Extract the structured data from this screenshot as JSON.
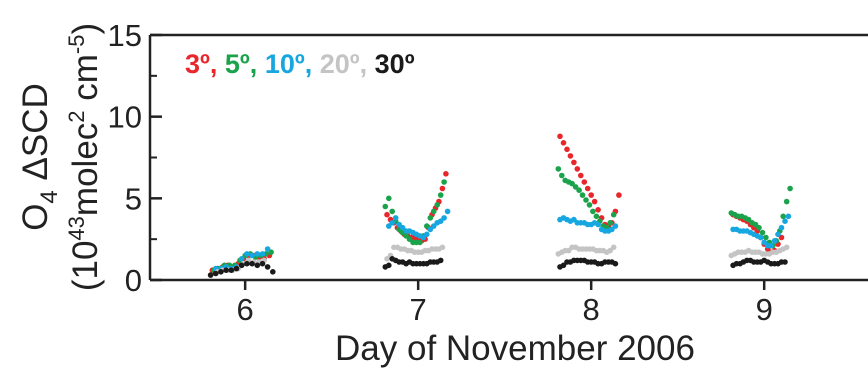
{
  "chart_data": {
    "type": "scatter",
    "xlabel": "Day of November 2006",
    "ylabel_line1": "O",
    "ylabel_line1_sub": "4",
    "ylabel_line1_rest": " ΔSCD",
    "ylabel_line2": "(10",
    "ylabel_line2_sup1": "43",
    "ylabel_line2_mid": "molec",
    "ylabel_line2_sup2": "2",
    "ylabel_line2_cm": " cm",
    "ylabel_line2_sup3": "-5",
    "ylabel_line2_close": ")",
    "xlim": [
      5.45,
      9.6
    ],
    "ylim": [
      0,
      15
    ],
    "xticks": [
      "6",
      "7",
      "8",
      "9"
    ],
    "yticks": [
      "0",
      "5",
      "10",
      "15"
    ],
    "series": [
      {
        "name": "3º",
        "color": "#e8262b",
        "points": [
          [
            5.81,
            0.6
          ],
          [
            5.84,
            0.7
          ],
          [
            5.87,
            0.8
          ],
          [
            5.9,
            0.9
          ],
          [
            5.93,
            0.8
          ],
          [
            5.96,
            1.0
          ],
          [
            5.99,
            1.3
          ],
          [
            6.02,
            1.5
          ],
          [
            6.05,
            1.5
          ],
          [
            6.08,
            1.4
          ],
          [
            6.11,
            1.3
          ],
          [
            6.14,
            1.5
          ],
          [
            6.82,
            4.0
          ],
          [
            6.84,
            3.7
          ],
          [
            6.86,
            3.5
          ],
          [
            6.88,
            3.2
          ],
          [
            6.9,
            3.0
          ],
          [
            6.92,
            2.8
          ],
          [
            6.94,
            2.7
          ],
          [
            6.96,
            2.6
          ],
          [
            6.98,
            2.6
          ],
          [
            7.0,
            2.5
          ],
          [
            7.02,
            2.4
          ],
          [
            7.04,
            2.5
          ],
          [
            7.06,
            3.2
          ],
          [
            7.08,
            4.0
          ],
          [
            7.1,
            4.4
          ],
          [
            7.12,
            4.8
          ],
          [
            7.14,
            5.6
          ],
          [
            7.16,
            6.5
          ],
          [
            7.82,
            8.8
          ],
          [
            7.84,
            8.4
          ],
          [
            7.86,
            8.0
          ],
          [
            7.88,
            7.6
          ],
          [
            7.9,
            7.2
          ],
          [
            7.92,
            6.8
          ],
          [
            7.94,
            6.4
          ],
          [
            7.96,
            6.0
          ],
          [
            7.98,
            5.6
          ],
          [
            8.0,
            5.2
          ],
          [
            8.02,
            4.8
          ],
          [
            8.04,
            4.3
          ],
          [
            8.06,
            3.8
          ],
          [
            8.08,
            3.4
          ],
          [
            8.1,
            3.3
          ],
          [
            8.12,
            3.5
          ],
          [
            8.14,
            4.2
          ],
          [
            8.16,
            5.2
          ],
          [
            8.82,
            4.0
          ],
          [
            8.84,
            3.9
          ],
          [
            8.86,
            3.8
          ],
          [
            8.88,
            3.7
          ],
          [
            8.9,
            3.6
          ],
          [
            8.92,
            3.4
          ],
          [
            8.94,
            3.2
          ],
          [
            8.96,
            3.0
          ],
          [
            8.98,
            2.6
          ],
          [
            9.0,
            2.2
          ],
          [
            9.02,
            1.9
          ],
          [
            9.04,
            1.7
          ],
          [
            9.06,
            1.8
          ],
          [
            9.08,
            2.2
          ],
          [
            9.1,
            2.6
          ]
        ]
      },
      {
        "name": "5º",
        "color": "#1aa34a",
        "points": [
          [
            5.82,
            0.6
          ],
          [
            5.85,
            0.7
          ],
          [
            5.88,
            0.9
          ],
          [
            5.91,
            0.9
          ],
          [
            5.94,
            0.9
          ],
          [
            5.97,
            1.2
          ],
          [
            6.0,
            1.5
          ],
          [
            6.03,
            1.6
          ],
          [
            6.06,
            1.4
          ],
          [
            6.09,
            1.5
          ],
          [
            6.12,
            1.6
          ],
          [
            6.15,
            1.7
          ],
          [
            6.81,
            4.5
          ],
          [
            6.83,
            5.0
          ],
          [
            6.85,
            4.2
          ],
          [
            6.87,
            3.6
          ],
          [
            6.89,
            3.1
          ],
          [
            6.91,
            2.9
          ],
          [
            6.93,
            2.7
          ],
          [
            6.95,
            2.5
          ],
          [
            6.97,
            2.3
          ],
          [
            6.99,
            2.3
          ],
          [
            7.01,
            2.3
          ],
          [
            7.03,
            2.7
          ],
          [
            7.05,
            3.3
          ],
          [
            7.07,
            3.8
          ],
          [
            7.09,
            4.2
          ],
          [
            7.11,
            4.6
          ],
          [
            7.13,
            5.2
          ],
          [
            7.15,
            6.0
          ],
          [
            7.81,
            6.8
          ],
          [
            7.83,
            6.4
          ],
          [
            7.85,
            6.1
          ],
          [
            7.87,
            6.0
          ],
          [
            7.89,
            5.9
          ],
          [
            7.91,
            5.7
          ],
          [
            7.93,
            5.5
          ],
          [
            7.95,
            5.2
          ],
          [
            7.97,
            4.9
          ],
          [
            7.99,
            4.6
          ],
          [
            8.01,
            4.2
          ],
          [
            8.03,
            3.9
          ],
          [
            8.05,
            3.6
          ],
          [
            8.07,
            3.3
          ],
          [
            8.09,
            3.2
          ],
          [
            8.11,
            3.5
          ],
          [
            8.13,
            4.0
          ],
          [
            8.81,
            4.1
          ],
          [
            8.83,
            4.0
          ],
          [
            8.85,
            3.9
          ],
          [
            8.87,
            3.9
          ],
          [
            8.89,
            3.8
          ],
          [
            8.91,
            3.7
          ],
          [
            8.93,
            3.5
          ],
          [
            8.95,
            3.4
          ],
          [
            8.97,
            3.2
          ],
          [
            8.99,
            2.9
          ],
          [
            9.01,
            2.6
          ],
          [
            9.03,
            2.3
          ],
          [
            9.05,
            2.1
          ],
          [
            9.07,
            2.4
          ],
          [
            9.09,
            3.0
          ],
          [
            9.11,
            3.9
          ],
          [
            9.13,
            4.8
          ],
          [
            9.15,
            5.6
          ]
        ]
      },
      {
        "name": "10º",
        "color": "#16a6e0",
        "points": [
          [
            5.83,
            0.7
          ],
          [
            5.86,
            0.7
          ],
          [
            5.89,
            0.8
          ],
          [
            5.92,
            0.7
          ],
          [
            5.95,
            0.8
          ],
          [
            5.98,
            1.3
          ],
          [
            6.01,
            1.6
          ],
          [
            6.04,
            1.5
          ],
          [
            6.07,
            1.6
          ],
          [
            6.1,
            1.6
          ],
          [
            6.13,
            1.9
          ],
          [
            6.83,
            3.3
          ],
          [
            6.85,
            3.5
          ],
          [
            6.87,
            3.8
          ],
          [
            6.89,
            3.4
          ],
          [
            6.91,
            3.2
          ],
          [
            6.93,
            3.0
          ],
          [
            6.95,
            3.0
          ],
          [
            6.97,
            2.9
          ],
          [
            6.99,
            2.8
          ],
          [
            7.01,
            2.7
          ],
          [
            7.03,
            2.6
          ],
          [
            7.05,
            2.8
          ],
          [
            7.07,
            3.1
          ],
          [
            7.09,
            3.3
          ],
          [
            7.11,
            3.5
          ],
          [
            7.13,
            3.6
          ],
          [
            7.15,
            3.8
          ],
          [
            7.17,
            4.2
          ],
          [
            7.82,
            3.7
          ],
          [
            7.84,
            3.8
          ],
          [
            7.86,
            3.7
          ],
          [
            7.88,
            3.6
          ],
          [
            7.9,
            3.7
          ],
          [
            7.92,
            3.5
          ],
          [
            7.94,
            3.5
          ],
          [
            7.96,
            3.5
          ],
          [
            7.98,
            3.4
          ],
          [
            8.0,
            3.4
          ],
          [
            8.02,
            3.5
          ],
          [
            8.04,
            3.4
          ],
          [
            8.06,
            3.1
          ],
          [
            8.08,
            3.0
          ],
          [
            8.1,
            3.0
          ],
          [
            8.12,
            3.1
          ],
          [
            8.14,
            3.3
          ],
          [
            8.82,
            3.1
          ],
          [
            8.84,
            3.1
          ],
          [
            8.86,
            3.0
          ],
          [
            8.88,
            3.0
          ],
          [
            8.9,
            3.0
          ],
          [
            8.92,
            2.9
          ],
          [
            8.94,
            2.8
          ],
          [
            8.96,
            2.7
          ],
          [
            8.98,
            2.6
          ],
          [
            9.0,
            2.3
          ],
          [
            9.02,
            2.1
          ],
          [
            9.04,
            2.1
          ],
          [
            9.06,
            2.4
          ],
          [
            9.08,
            2.8
          ],
          [
            9.1,
            3.2
          ],
          [
            9.12,
            3.6
          ],
          [
            9.14,
            3.9
          ]
        ]
      },
      {
        "name": "20º",
        "color": "#c4c4c4",
        "points": [
          [
            5.84,
            0.5
          ],
          [
            5.87,
            0.6
          ],
          [
            5.9,
            0.6
          ],
          [
            5.93,
            0.6
          ],
          [
            5.96,
            0.7
          ],
          [
            5.99,
            1.0
          ],
          [
            6.02,
            1.2
          ],
          [
            6.05,
            1.1
          ],
          [
            6.08,
            1.1
          ],
          [
            6.11,
            1.2
          ],
          [
            6.82,
            1.3
          ],
          [
            6.84,
            1.5
          ],
          [
            6.86,
            2.0
          ],
          [
            6.88,
            2.0
          ],
          [
            6.9,
            1.9
          ],
          [
            6.92,
            1.9
          ],
          [
            6.94,
            1.8
          ],
          [
            6.96,
            1.8
          ],
          [
            6.98,
            1.7
          ],
          [
            7.0,
            1.7
          ],
          [
            7.02,
            1.7
          ],
          [
            7.04,
            1.8
          ],
          [
            7.06,
            1.8
          ],
          [
            7.08,
            1.9
          ],
          [
            7.1,
            1.9
          ],
          [
            7.12,
            1.9
          ],
          [
            7.14,
            2.0
          ],
          [
            7.81,
            1.6
          ],
          [
            7.83,
            1.7
          ],
          [
            7.85,
            1.8
          ],
          [
            7.87,
            1.8
          ],
          [
            7.89,
            2.0
          ],
          [
            7.91,
            2.0
          ],
          [
            7.93,
            1.9
          ],
          [
            7.95,
            1.9
          ],
          [
            7.97,
            1.9
          ],
          [
            7.99,
            1.9
          ],
          [
            8.01,
            1.9
          ],
          [
            8.03,
            1.8
          ],
          [
            8.05,
            1.8
          ],
          [
            8.07,
            1.8
          ],
          [
            8.09,
            1.7
          ],
          [
            8.11,
            1.8
          ],
          [
            8.13,
            2.0
          ],
          [
            8.81,
            1.5
          ],
          [
            8.83,
            1.6
          ],
          [
            8.85,
            1.7
          ],
          [
            8.87,
            1.7
          ],
          [
            8.89,
            1.7
          ],
          [
            8.91,
            1.8
          ],
          [
            8.93,
            1.7
          ],
          [
            8.95,
            1.7
          ],
          [
            8.97,
            1.7
          ],
          [
            8.99,
            1.6
          ],
          [
            9.01,
            1.6
          ],
          [
            9.03,
            1.6
          ],
          [
            9.05,
            1.7
          ],
          [
            9.07,
            1.7
          ],
          [
            9.09,
            1.8
          ],
          [
            9.11,
            1.9
          ],
          [
            9.13,
            2.0
          ]
        ]
      },
      {
        "name": "30º",
        "color": "#1a1a1a",
        "points": [
          [
            5.8,
            0.3
          ],
          [
            5.83,
            0.4
          ],
          [
            5.86,
            0.5
          ],
          [
            5.89,
            0.6
          ],
          [
            5.92,
            0.6
          ],
          [
            5.95,
            0.7
          ],
          [
            5.98,
            0.9
          ],
          [
            6.01,
            1.0
          ],
          [
            6.04,
            1.0
          ],
          [
            6.07,
            0.9
          ],
          [
            6.1,
            1.0
          ],
          [
            6.13,
            0.8
          ],
          [
            6.16,
            0.5
          ],
          [
            6.81,
            0.8
          ],
          [
            6.83,
            0.9
          ],
          [
            6.85,
            1.3
          ],
          [
            6.87,
            1.2
          ],
          [
            6.89,
            1.1
          ],
          [
            6.91,
            1.1
          ],
          [
            6.93,
            1.0
          ],
          [
            6.95,
            1.1
          ],
          [
            6.97,
            1.0
          ],
          [
            6.99,
            1.0
          ],
          [
            7.01,
            1.0
          ],
          [
            7.03,
            1.0
          ],
          [
            7.05,
            1.0
          ],
          [
            7.07,
            1.1
          ],
          [
            7.09,
            1.1
          ],
          [
            7.11,
            1.1
          ],
          [
            7.13,
            1.2
          ],
          [
            7.82,
            0.8
          ],
          [
            7.84,
            0.9
          ],
          [
            7.86,
            1.1
          ],
          [
            7.88,
            1.1
          ],
          [
            7.9,
            1.2
          ],
          [
            7.92,
            1.2
          ],
          [
            7.94,
            1.2
          ],
          [
            7.96,
            1.2
          ],
          [
            7.98,
            1.1
          ],
          [
            8.0,
            1.1
          ],
          [
            8.02,
            1.1
          ],
          [
            8.04,
            1.0
          ],
          [
            8.06,
            1.0
          ],
          [
            8.08,
            1.1
          ],
          [
            8.1,
            1.1
          ],
          [
            8.12,
            1.1
          ],
          [
            8.14,
            1.0
          ],
          [
            8.82,
            0.9
          ],
          [
            8.84,
            1.0
          ],
          [
            8.86,
            1.0
          ],
          [
            8.88,
            1.1
          ],
          [
            8.9,
            1.2
          ],
          [
            8.92,
            1.2
          ],
          [
            8.94,
            1.1
          ],
          [
            8.96,
            1.1
          ],
          [
            8.98,
            1.1
          ],
          [
            9.0,
            1.2
          ],
          [
            9.02,
            1.1
          ],
          [
            9.04,
            1.0
          ],
          [
            9.06,
            1.0
          ],
          [
            9.08,
            1.0
          ],
          [
            9.1,
            1.1
          ],
          [
            9.12,
            1.1
          ]
        ]
      }
    ],
    "legend_separator": ", ",
    "legend_placement": "top-left inside",
    "grid": false
  }
}
